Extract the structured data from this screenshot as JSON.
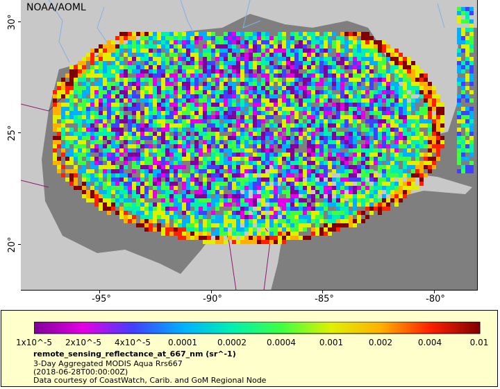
{
  "map": {
    "credit": "NOAA/AOML",
    "longitude_ticks": [
      "-95°",
      "-90°",
      "-85°",
      "-80°"
    ],
    "latitude_ticks": [
      "30°",
      "25°",
      "20°"
    ],
    "colors": {
      "ocean_nodata": "#7f7f7f",
      "land": "#c8c8c8",
      "rivers": "#7fb2e5",
      "borders": "#8b1a6b"
    }
  },
  "legend": {
    "colorbar_labels": [
      "1x10^-5",
      "2x10^-5",
      "4x10^-5",
      "0.0001",
      "0.0002",
      "0.0004",
      "0.001",
      "0.002",
      "0.004",
      "0.01"
    ],
    "colorbar_colors": [
      "#80009a",
      "#e400e4",
      "#4040ff",
      "#00b0ff",
      "#00f0b0",
      "#40ff40",
      "#e0f000",
      "#ffb000",
      "#ff2000",
      "#800000"
    ],
    "title": "remote_sensing_reflectance_at_667_nm (sr^-1)",
    "line1": "3-Day Aggregated MODIS Aqua Rrs667",
    "line2": "(2018-06-28T00:00:00Z)",
    "line3": "Data courtesy of CoastWatch, Carib. and GoM Regional Node"
  }
}
